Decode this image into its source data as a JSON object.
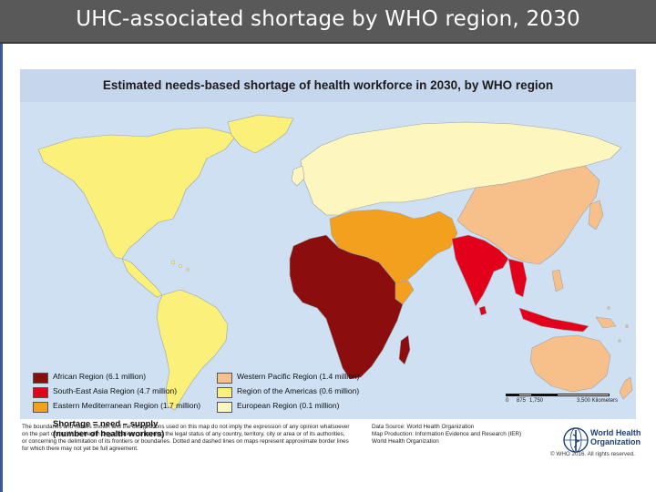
{
  "slide": {
    "title": "UHC-associated shortage by WHO region, 2030"
  },
  "map": {
    "heading": "Estimated needs-based shortage of health workforce in 2030, by WHO region",
    "legend": {
      "title_line1": "Shortage = need – supply",
      "title_line2": "(number of health workers)",
      "items": [
        {
          "label": "African Region (6.1 million)",
          "color": "#8b0d0d"
        },
        {
          "label": "South-East Asia Region (4.7 million)",
          "color": "#e3001b"
        },
        {
          "label": "Eastern Mediterranean Region (1.7 million)",
          "color": "#f2a01e"
        },
        {
          "label": "Western Pacific Region (1.4 million)",
          "color": "#f7c08a"
        },
        {
          "label": "Region of the Americas (0.6 million)",
          "color": "#fbf07a"
        },
        {
          "label": "European Region (0.1 million)",
          "color": "#fdf6be"
        }
      ]
    },
    "scale": {
      "ticks": [
        "0",
        "875",
        "1,750",
        "3,500 Kilometers"
      ]
    },
    "colors": {
      "ocean": "#cfe0f2",
      "header_band": "#c6d6ec",
      "border_lines": "#9aa3aa"
    },
    "regions": [
      {
        "name": "African Region",
        "shortage_million": 6.1
      },
      {
        "name": "South-East Asia Region",
        "shortage_million": 4.7
      },
      {
        "name": "Eastern Mediterranean Region",
        "shortage_million": 1.7
      },
      {
        "name": "Western Pacific Region",
        "shortage_million": 1.4
      },
      {
        "name": "Region of the Americas",
        "shortage_million": 0.6
      },
      {
        "name": "European Region",
        "shortage_million": 0.1
      }
    ]
  },
  "footer": {
    "disclaimer": [
      "The boundaries and names shown and the designations used on this map do not imply the expression of any opinion whatsoever",
      "on the part of the World Health Organization concerning the legal status of any country, territory, city or area or of its authorities,",
      "or concerning the delimitation of its frontiers or boundaries. Dotted and dashed lines on maps represent approximate border lines",
      "for which there may not yet be full agreement."
    ],
    "source": [
      "Data Source: World Health Organization",
      "Map Production: Information Evidence and Research (IER)",
      "World Health Organization"
    ],
    "who_name_line1": "World Health",
    "who_name_line2": "Organization",
    "copyright": "© WHO 2016. All rights reserved."
  }
}
